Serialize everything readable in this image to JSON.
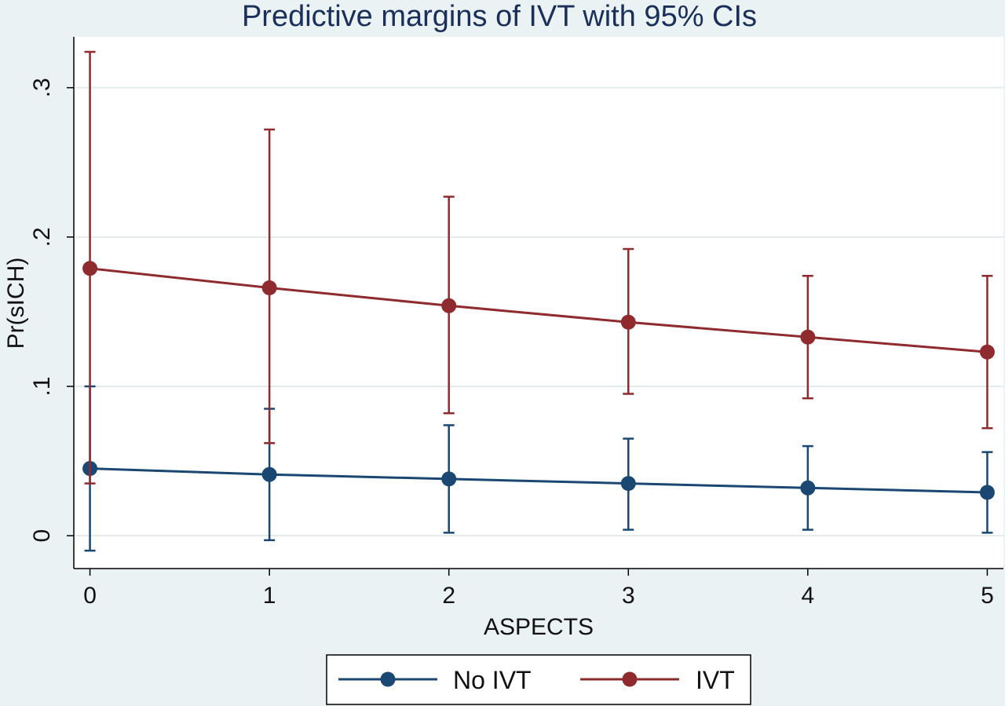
{
  "chart_data": {
    "type": "line",
    "title": "Predictive margins of IVT with 95% CIs",
    "xlabel": "ASPECTS",
    "ylabel": "Pr(sICH)",
    "x": [
      0,
      1,
      2,
      3,
      4,
      5
    ],
    "x_tick_labels": [
      "0",
      "1",
      "2",
      "3",
      "4",
      "5"
    ],
    "y_ticks": [
      0,
      0.1,
      0.2,
      0.3
    ],
    "y_tick_labels": [
      "0",
      ".1",
      ".2",
      ".3"
    ],
    "xlim": [
      -0.09,
      5.09
    ],
    "ylim": [
      -0.022,
      0.334
    ],
    "grid": true,
    "legend_position": "bottom",
    "series": [
      {
        "name": "No IVT",
        "color": "#1a4872",
        "marker": "circle",
        "values": [
          0.045,
          0.041,
          0.038,
          0.035,
          0.032,
          0.029
        ],
        "ci_lower": [
          -0.01,
          -0.003,
          0.002,
          0.004,
          0.004,
          0.002
        ],
        "ci_upper": [
          0.1,
          0.085,
          0.074,
          0.065,
          0.06,
          0.056
        ]
      },
      {
        "name": "IVT",
        "color": "#8f2b2e",
        "marker": "circle",
        "values": [
          0.179,
          0.166,
          0.154,
          0.143,
          0.133,
          0.123
        ],
        "ci_lower": [
          0.035,
          0.062,
          0.082,
          0.095,
          0.092,
          0.072
        ],
        "ci_upper": [
          0.324,
          0.272,
          0.227,
          0.192,
          0.174,
          0.174
        ]
      }
    ]
  },
  "colors": {
    "page_background": "#eaf2f3",
    "plot_background": "#ffffff",
    "gridline": "#e3ebed",
    "title": "#1a2f5a"
  }
}
